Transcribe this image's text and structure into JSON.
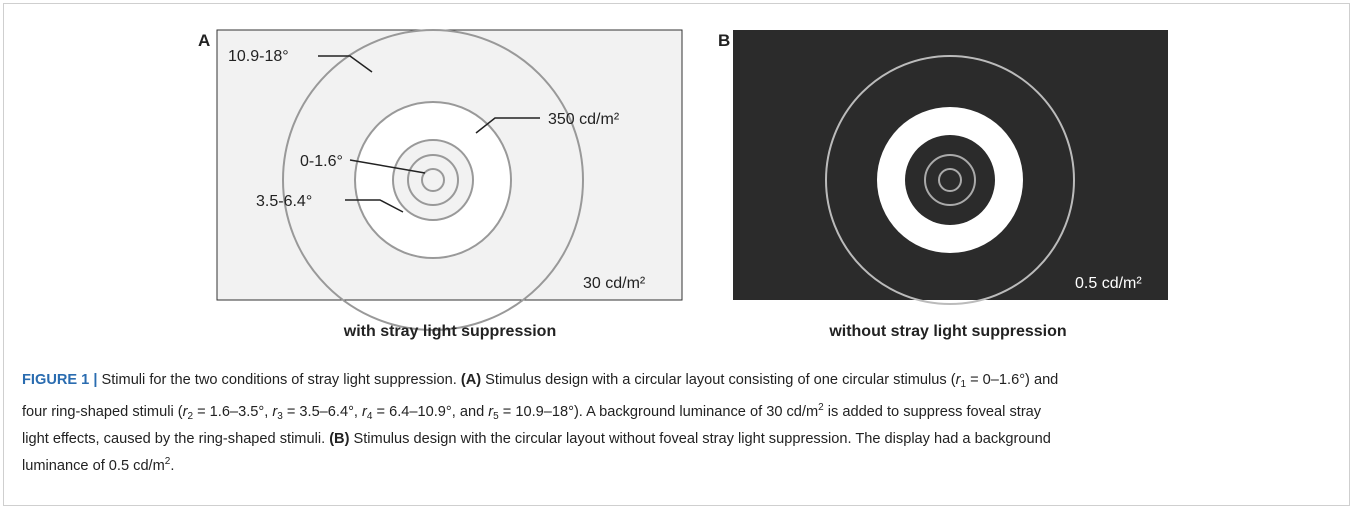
{
  "figure": {
    "panel_a": {
      "letter": "A",
      "labels": [
        "10.9-18°",
        "350 cd/m²",
        "0-1.6°",
        "3.5-6.4°",
        "30 cd/m²"
      ],
      "caption": "with stray light suppression"
    },
    "panel_b": {
      "letter": "B",
      "labels": [
        "0.5 cd/m²"
      ],
      "caption": "without stray light suppression"
    }
  },
  "caption": {
    "lines": [
      [
        "FIGURE 1 |",
        " Stimuli for the two conditions of stray light suppression. ",
        "(A)",
        " Stimulus design with a circular layout consisting of one circular stimulus (",
        "r",
        "1",
        " = 0–1.6°) and"
      ],
      [
        "four ring-shaped stimuli (",
        "r",
        "2",
        " = 1.6–3.5°, ",
        "r",
        "3",
        " = 3.5–6.4°, ",
        "r",
        "4",
        " = 6.4–10.9°, and ",
        "r",
        "5",
        " = 10.9–18°). A background luminance of 30 cd/m",
        "2",
        " is added to suppress foveal stray"
      ],
      [
        "light effects, caused by the ring-shaped stimuli. ",
        "(B)",
        " Stimulus design with the circular layout without foveal stray light suppression. The display had a background"
      ],
      [
        "luminance of 0.5 cd/m",
        "2",
        "."
      ]
    ]
  }
}
